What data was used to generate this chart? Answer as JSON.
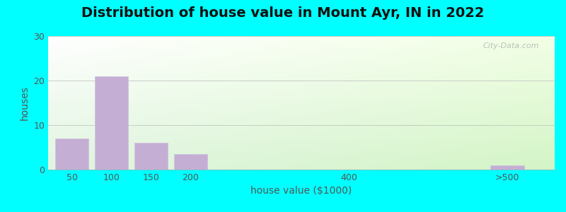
{
  "title": "Distribution of house value in Mount Ayr, IN in 2022",
  "xlabel": "house value ($1000)",
  "ylabel": "houses",
  "background_color": "#00FFFF",
  "bar_color": "#c4aed4",
  "ylim": [
    0,
    30
  ],
  "yticks": [
    0,
    10,
    20,
    30
  ],
  "title_fontsize": 14,
  "axis_label_fontsize": 10,
  "tick_label_fontsize": 9,
  "tick_label_color": "#555555",
  "axis_label_color": "#555555",
  "title_color": "#111111",
  "categories": [
    "50",
    "100",
    "150",
    "200",
    "400",
    ">500"
  ],
  "values": [
    7,
    21,
    6,
    3.5,
    0,
    1
  ],
  "bar_positions": [
    1,
    2,
    3,
    4,
    8,
    12
  ],
  "bar_width": 0.85,
  "tick_positions": [
    1,
    2,
    3,
    4,
    8,
    12
  ],
  "gridcolor": "#bbbbbb",
  "watermark": "City-Data.com"
}
